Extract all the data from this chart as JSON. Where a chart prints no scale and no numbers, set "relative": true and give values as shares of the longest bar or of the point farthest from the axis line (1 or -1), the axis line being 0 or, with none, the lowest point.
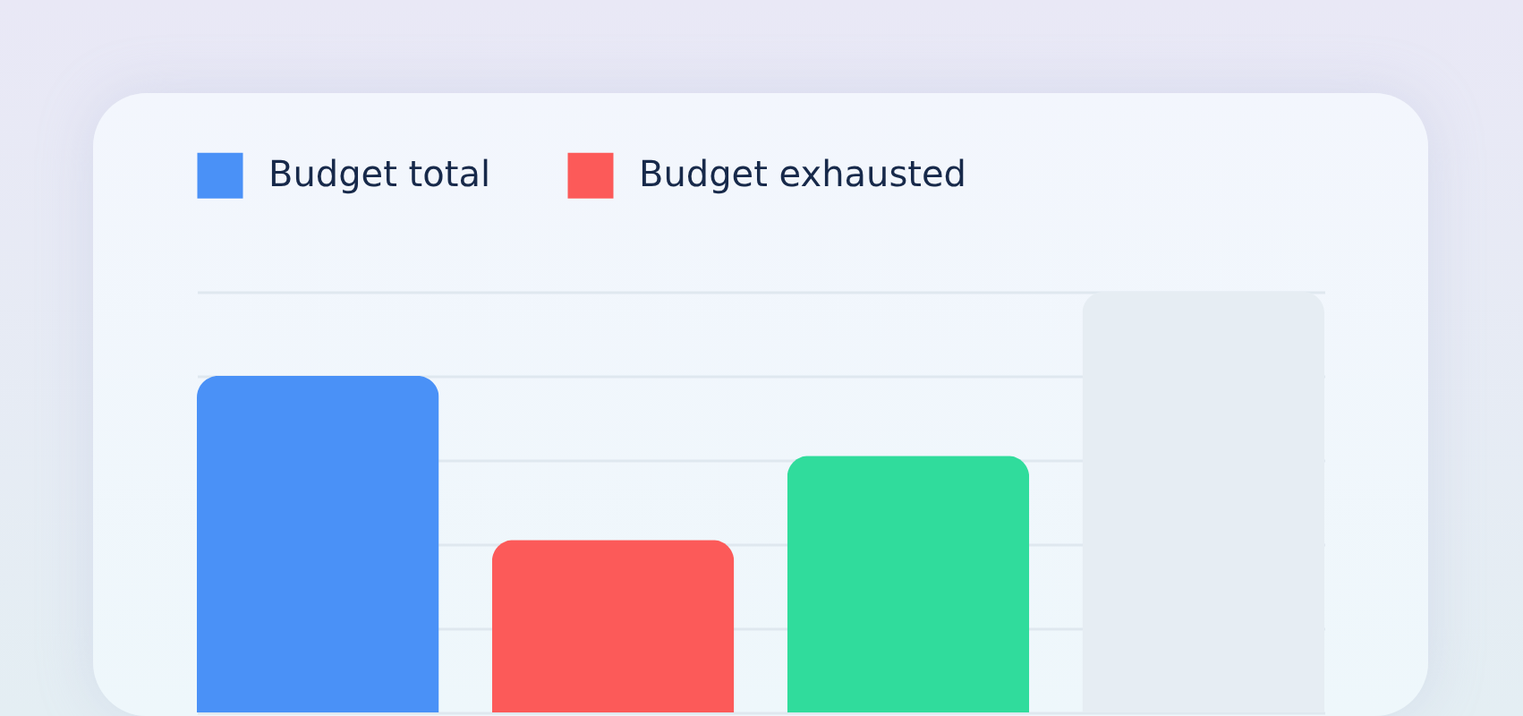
{
  "chart_data": {
    "type": "bar",
    "relative": true,
    "categories": [
      null,
      null,
      null,
      null
    ],
    "series": [
      {
        "name": "Budget total",
        "color": "#4a91f7",
        "values": [
          0.8,
          null,
          null,
          null
        ]
      },
      {
        "name": "Budget exhausted",
        "color": "#fc5a59",
        "values": [
          null,
          0.41,
          null,
          null
        ]
      },
      {
        "color": "#30dc9c",
        "values": [
          null,
          null,
          0.61,
          null
        ]
      },
      {
        "color": "#e6edf3",
        "values": [
          null,
          null,
          null,
          1
        ]
      }
    ],
    "stacked": true,
    "grid": true,
    "legend": "top left"
  }
}
